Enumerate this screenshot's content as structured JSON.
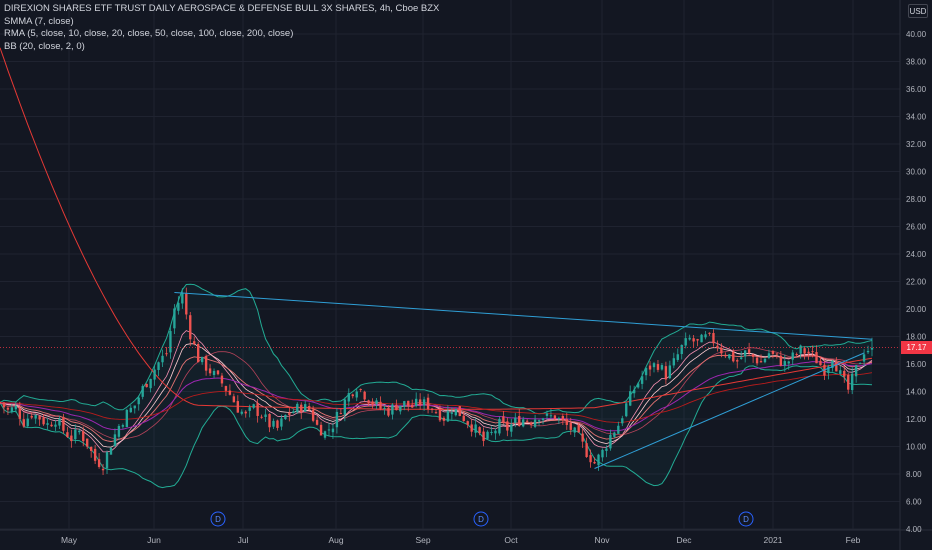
{
  "legend": {
    "title": "DIREXION SHARES ETF TRUST DAILY AEROSPACE & DEFENSE BULL 3X SHARES, 4h, Cboe BZX",
    "indicators": [
      "SMMA (7, close)",
      "RMA (5, close, 10, close, 20, close, 50, close, 100, close, 200, close)",
      "BB (20, close, 2, 0)"
    ]
  },
  "price_axis": {
    "currency": "USD",
    "current_price": "17.17",
    "ticks": [
      "40.00",
      "38.00",
      "36.00",
      "34.00",
      "32.00",
      "30.00",
      "28.00",
      "26.00",
      "24.00",
      "22.00",
      "20.00",
      "18.00",
      "16.00",
      "14.00",
      "12.00",
      "10.00",
      "8.00",
      "6.00",
      "4.00"
    ]
  },
  "time_axis": {
    "labels": [
      "May",
      "Jun",
      "Jul",
      "Aug",
      "Sep",
      "Oct",
      "Nov",
      "Dec",
      "2021",
      "Feb"
    ]
  },
  "dividend_markers": [
    "D",
    "D",
    "D"
  ],
  "colors": {
    "background": "#131722",
    "up": "#26a69a",
    "down": "#ef5350",
    "bb": "#22ab94",
    "trendline": "#2f9fd6",
    "ma_red": "#e53935",
    "ma_purple": "#9c27b0",
    "ma_pink": "#e57373",
    "grid": "#1f2330"
  },
  "chart_data": {
    "type": "candlestick",
    "title": "DIREXION SHARES ETF TRUST DAILY AEROSPACE & DEFENSE BULL 3X SHARES, 4h, Cboe BZX",
    "ylim": [
      4,
      41.5
    ],
    "x_labels": [
      "May",
      "Jun",
      "Jul",
      "Aug",
      "Sep",
      "Oct",
      "Nov",
      "Dec",
      "2021",
      "Feb"
    ],
    "close_path": [
      [
        0,
        13.2
      ],
      [
        2,
        12.6
      ],
      [
        4,
        12.8
      ],
      [
        6,
        11.8
      ],
      [
        8,
        12.4
      ],
      [
        10,
        12.1
      ],
      [
        12,
        11.6
      ],
      [
        14,
        12.0
      ],
      [
        16,
        11.2
      ],
      [
        18,
        10.6
      ],
      [
        20,
        11.1
      ],
      [
        22,
        10.2
      ],
      [
        24,
        9.0
      ],
      [
        26,
        8.7
      ],
      [
        28,
        10.2
      ],
      [
        30,
        11.5
      ],
      [
        32,
        12.4
      ],
      [
        34,
        13.0
      ],
      [
        36,
        14.2
      ],
      [
        38,
        15.2
      ],
      [
        40,
        16.1
      ],
      [
        42,
        16.8
      ],
      [
        44,
        20.0
      ],
      [
        46,
        21.0
      ],
      [
        48,
        18.2
      ],
      [
        50,
        16.4
      ],
      [
        52,
        15.8
      ],
      [
        54,
        15.2
      ],
      [
        56,
        14.6
      ],
      [
        58,
        13.8
      ],
      [
        60,
        12.8
      ],
      [
        62,
        12.2
      ],
      [
        64,
        12.8
      ],
      [
        66,
        12.3
      ],
      [
        68,
        11.6
      ],
      [
        70,
        11.3
      ],
      [
        72,
        12.2
      ],
      [
        74,
        12.6
      ],
      [
        76,
        12.9
      ],
      [
        78,
        12.7
      ],
      [
        80,
        11.5
      ],
      [
        82,
        11.0
      ],
      [
        84,
        11.6
      ],
      [
        86,
        12.8
      ],
      [
        88,
        13.8
      ],
      [
        90,
        14.4
      ],
      [
        92,
        13.8
      ],
      [
        94,
        13.2
      ],
      [
        96,
        12.8
      ],
      [
        98,
        12.6
      ],
      [
        100,
        13.0
      ],
      [
        102,
        13.1
      ],
      [
        104,
        12.9
      ],
      [
        106,
        13.2
      ],
      [
        108,
        13.0
      ],
      [
        110,
        12.6
      ],
      [
        112,
        12.1
      ],
      [
        114,
        12.8
      ],
      [
        116,
        12.4
      ],
      [
        118,
        11.8
      ],
      [
        120,
        11.2
      ],
      [
        122,
        10.4
      ],
      [
        124,
        10.9
      ],
      [
        126,
        11.6
      ],
      [
        128,
        11.3
      ],
      [
        130,
        11.8
      ],
      [
        132,
        12.0
      ],
      [
        134,
        11.9
      ],
      [
        136,
        12.3
      ],
      [
        138,
        12.1
      ],
      [
        140,
        12.2
      ],
      [
        142,
        11.7
      ],
      [
        144,
        11.3
      ],
      [
        146,
        10.6
      ],
      [
        148,
        9.6
      ],
      [
        150,
        8.8
      ],
      [
        152,
        9.6
      ],
      [
        154,
        10.8
      ],
      [
        156,
        11.6
      ],
      [
        158,
        13.0
      ],
      [
        160,
        14.2
      ],
      [
        162,
        15.1
      ],
      [
        164,
        15.8
      ],
      [
        166,
        16.0
      ],
      [
        168,
        15.2
      ],
      [
        170,
        16.1
      ],
      [
        172,
        17.2
      ],
      [
        174,
        17.8
      ],
      [
        176,
        17.5
      ],
      [
        178,
        17.9
      ],
      [
        180,
        17.7
      ],
      [
        182,
        17.0
      ],
      [
        184,
        16.6
      ],
      [
        186,
        16.2
      ],
      [
        188,
        16.8
      ],
      [
        190,
        16.5
      ],
      [
        192,
        16.1
      ],
      [
        194,
        16.8
      ],
      [
        196,
        16.4
      ],
      [
        198,
        16.0
      ],
      [
        200,
        16.5
      ],
      [
        202,
        17.0
      ],
      [
        204,
        16.8
      ],
      [
        206,
        16.3
      ],
      [
        208,
        15.6
      ],
      [
        210,
        16.6
      ],
      [
        212,
        15.2
      ],
      [
        214,
        14.1
      ],
      [
        216,
        15.6
      ],
      [
        218,
        17.0
      ],
      [
        220,
        17.17
      ]
    ],
    "trendlines": [
      {
        "x1": 44,
        "y1": 21.2,
        "x2": 220,
        "y2": 17.8
      },
      {
        "x1": 150,
        "y1": 8.4,
        "x2": 218,
        "y2": 16.8
      }
    ],
    "series": [
      {
        "name": "SMMA (7, close)"
      },
      {
        "name": "RMA (5, close, 10, close, 20, close, 50, close, 100, close, 200, close)"
      },
      {
        "name": "BB (20, close, 2, 0)"
      }
    ]
  }
}
